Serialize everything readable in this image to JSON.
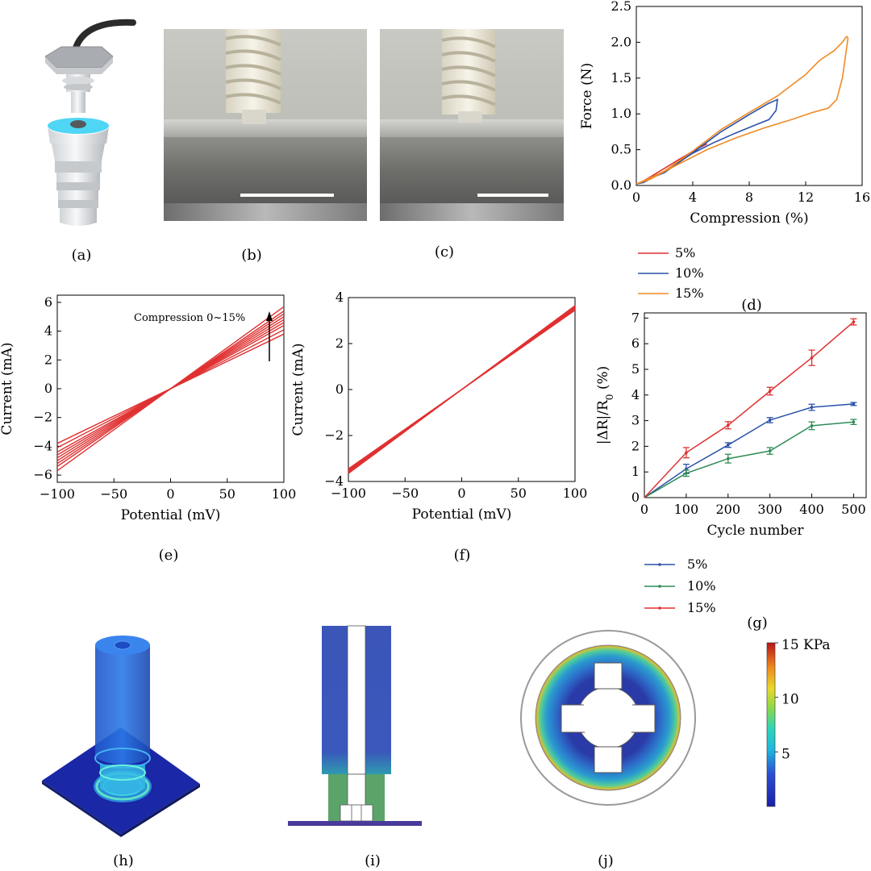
{
  "panel_labels": {
    "a": "(a)",
    "b": "(b)",
    "c": "(c)",
    "d": "(d)",
    "e": "(e)",
    "f": "(f)",
    "g": "(g)",
    "h": "(h)",
    "i": "(i)",
    "j": "(j)"
  },
  "colors": {
    "red": "#e03030",
    "blue": "#2a52a8",
    "orange": "#f08a24",
    "green": "#2e8b57",
    "sensor_cyan": "#3ad0f5",
    "fem_blue": "#3b5fc4"
  },
  "annotation_e": "Compression 0~15%",
  "colorbar": {
    "ticks": [
      {
        "value": 15,
        "label": "15 KPa"
      },
      {
        "value": 10,
        "label": "10"
      },
      {
        "value": 5,
        "label": "5"
      }
    ],
    "range": [
      0,
      15
    ]
  },
  "chart_data": [
    {
      "id": "d",
      "type": "line",
      "xlabel": "Compression (%)",
      "ylabel": "Force (N)",
      "xlim": [
        0,
        16
      ],
      "ylim": [
        0,
        2.5
      ],
      "xticks": [
        0,
        4,
        8,
        12,
        16
      ],
      "yticks": [
        0.0,
        0.5,
        1.0,
        1.5,
        2.0,
        2.5
      ],
      "ytick_labels": [
        "0.0",
        "0.5",
        "1.0",
        "1.5",
        "2.0",
        "2.5"
      ],
      "legend_position": "below",
      "series": [
        {
          "name": "5%",
          "color": "#e03030",
          "x": [
            0,
            1,
            2,
            3,
            4,
            4.6,
            5,
            4.8,
            4.2,
            3,
            2,
            1,
            0.3,
            0
          ],
          "y": [
            0.02,
            0.09,
            0.2,
            0.32,
            0.46,
            0.55,
            0.58,
            0.56,
            0.5,
            0.36,
            0.24,
            0.12,
            0.04,
            0.02
          ]
        },
        {
          "name": "10%",
          "color": "#2a52a8",
          "x": [
            0,
            2,
            4,
            6,
            8,
            9.3,
            10,
            9.9,
            9.4,
            8.5,
            7,
            5.5,
            4,
            2,
            0.5,
            0
          ],
          "y": [
            0.02,
            0.18,
            0.46,
            0.75,
            0.99,
            1.14,
            1.2,
            1.05,
            0.92,
            0.85,
            0.73,
            0.6,
            0.45,
            0.2,
            0.04,
            0.02
          ]
        },
        {
          "name": "15%",
          "color": "#f08a24",
          "x": [
            0,
            2,
            4,
            6,
            8,
            10,
            12,
            13,
            14,
            14.6,
            14.9,
            15,
            14.6,
            14.2,
            13.6,
            12.5,
            11,
            9,
            7,
            5,
            3,
            1,
            0
          ],
          "y": [
            0.02,
            0.2,
            0.48,
            0.78,
            1.02,
            1.25,
            1.55,
            1.75,
            1.88,
            2.0,
            2.08,
            2.06,
            1.5,
            1.2,
            1.08,
            1.02,
            0.92,
            0.8,
            0.66,
            0.5,
            0.3,
            0.09,
            0.02
          ]
        }
      ]
    },
    {
      "id": "e",
      "type": "line",
      "xlabel": "Potential (mV)",
      "ylabel": "Current (mA)",
      "xlim": [
        -100,
        100
      ],
      "ylim": [
        -6.5,
        6.5
      ],
      "xticks": [
        -100,
        -50,
        0,
        50,
        100
      ],
      "xtick_labels": [
        "−100",
        "−50",
        "0",
        "50",
        "100"
      ],
      "yticks": [
        -6,
        -4,
        -2,
        0,
        2,
        4,
        6
      ],
      "ytick_labels": [
        "−6",
        "−4",
        "−2",
        "0",
        "2",
        "4",
        "6"
      ],
      "series_color": "#e03030",
      "slopes": [
        0.038,
        0.041,
        0.044,
        0.046,
        0.048,
        0.05,
        0.052,
        0.054,
        0.057
      ]
    },
    {
      "id": "f",
      "type": "line",
      "xlabel": "Potential (mV)",
      "ylabel": "Current (mA)",
      "xlim": [
        -100,
        100
      ],
      "ylim": [
        -4,
        4
      ],
      "xticks": [
        -100,
        -50,
        0,
        50,
        100
      ],
      "xtick_labels": [
        "−100",
        "−50",
        "0",
        "50",
        "100"
      ],
      "yticks": [
        -4,
        -2,
        0,
        2,
        4
      ],
      "ytick_labels": [
        "−4",
        "−2",
        "0",
        "2",
        "4"
      ],
      "series_color": "#e03030",
      "slopes": [
        0.0345,
        0.035,
        0.0355,
        0.036,
        0.0365
      ]
    },
    {
      "id": "g",
      "type": "line",
      "xlabel": "Cycle number",
      "ylabel": "|ΔR|/R",
      "ylabel_sub": "0",
      "ylabel_tail": " (%)",
      "xlim": [
        0,
        530
      ],
      "ylim": [
        0,
        7.2
      ],
      "xticks": [
        0,
        100,
        200,
        300,
        400,
        500
      ],
      "yticks": [
        0,
        1,
        2,
        3,
        4,
        5,
        6,
        7
      ],
      "legend_position": "below",
      "series": [
        {
          "name": "5%",
          "color": "#2a52a8",
          "x": [
            0,
            100,
            200,
            300,
            400,
            500
          ],
          "y": [
            0,
            1.12,
            2.05,
            3.02,
            3.52,
            3.65
          ],
          "err": [
            0,
            0.18,
            0.09,
            0.1,
            0.12,
            0.06
          ]
        },
        {
          "name": "10%",
          "color": "#2e8b57",
          "x": [
            0,
            100,
            200,
            300,
            400,
            500
          ],
          "y": [
            0,
            0.95,
            1.52,
            1.82,
            2.8,
            2.95
          ],
          "err": [
            0,
            0.12,
            0.17,
            0.13,
            0.15,
            0.1
          ]
        },
        {
          "name": "15%",
          "color": "#e03030",
          "x": [
            0,
            100,
            200,
            300,
            400,
            500
          ],
          "y": [
            0,
            1.75,
            2.82,
            4.15,
            5.45,
            6.85
          ],
          "err": [
            0,
            0.2,
            0.14,
            0.15,
            0.3,
            0.12
          ]
        }
      ]
    }
  ]
}
